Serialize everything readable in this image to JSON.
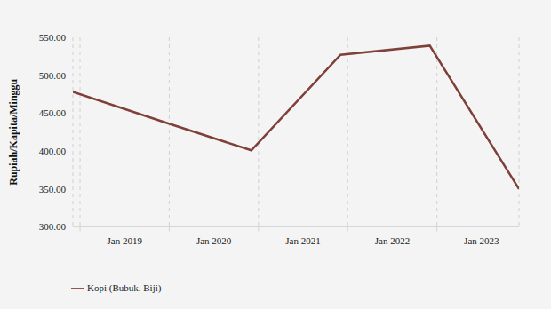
{
  "chart_data": {
    "type": "line",
    "y_label": "Rupiah/Kapita/Minggu",
    "x": [
      2018.92,
      2019.92,
      2020.92,
      2021.92,
      2022.92,
      2023.92
    ],
    "series": [
      {
        "name": "Kopi (Bubuk. Biji)",
        "color": "#7e4039",
        "values": [
          478,
          439,
          401,
          527,
          539,
          350
        ]
      }
    ],
    "xlim": [
      2018.92,
      2023.92
    ],
    "xticks": [
      {
        "value": 2019,
        "label": "Jan 2019"
      },
      {
        "value": 2020,
        "label": "Jan 2020"
      },
      {
        "value": 2021,
        "label": "Jan 2021"
      },
      {
        "value": 2022,
        "label": "Jan 2022"
      },
      {
        "value": 2023,
        "label": "Jan 2023"
      }
    ],
    "ylim": [
      300,
      550
    ],
    "yticks": [
      {
        "value": 300,
        "label": "300.00"
      },
      {
        "value": 350,
        "label": "350.00"
      },
      {
        "value": 400,
        "label": "400.00"
      },
      {
        "value": 450,
        "label": "450.00"
      },
      {
        "value": 500,
        "label": "500.00"
      },
      {
        "value": 550,
        "label": "550.00"
      }
    ],
    "grid": true,
    "legend": "bottom left"
  }
}
